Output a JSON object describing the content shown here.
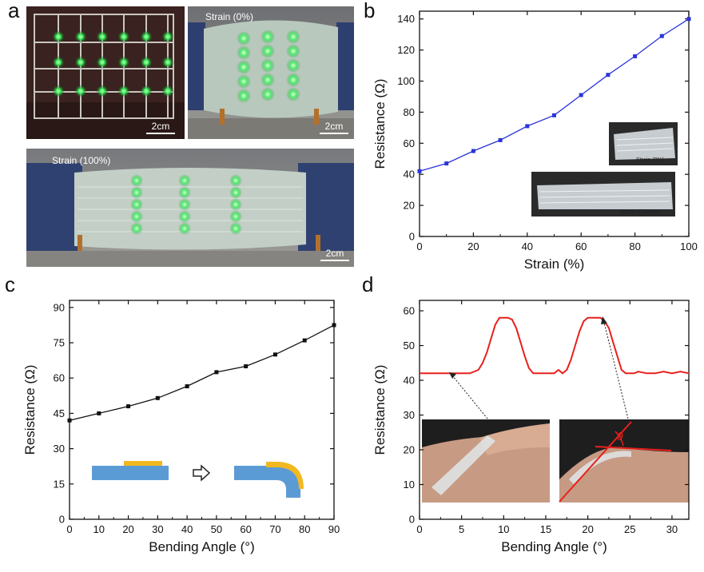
{
  "panels": {
    "a": "a",
    "b": "b",
    "c": "c",
    "d": "d"
  },
  "photos": {
    "p1": {
      "scale": "2cm"
    },
    "p2": {
      "label": "Strain (0%)",
      "scale": "2cm"
    },
    "p3": {
      "label": "Strain (100%)",
      "scale": "2cm"
    }
  },
  "colors": {
    "b_line": "#2a35d8",
    "c_line": "#111111",
    "d_line": "#e8201c",
    "inset_blue": "#5b9bd5",
    "inset_yellow": "#f2b820"
  },
  "chart_data": [
    {
      "panel": "b",
      "type": "line",
      "xlabel": "Strain (%)",
      "ylabel": "Resistance (Ω)",
      "xlim": [
        0,
        100
      ],
      "ylim": [
        0,
        145
      ],
      "xticks": [
        "0",
        "20",
        "40",
        "60",
        "80",
        "100"
      ],
      "yticks": [
        "0",
        "20",
        "40",
        "60",
        "80",
        "100",
        "120",
        "140"
      ],
      "x": [
        0,
        10,
        20,
        30,
        40,
        50,
        60,
        70,
        80,
        90,
        100
      ],
      "values": [
        42,
        47,
        55,
        62,
        71,
        78,
        91,
        104,
        116,
        129,
        140
      ],
      "insets": [
        "Strain (0%)",
        "Strain (100%)"
      ]
    },
    {
      "panel": "c",
      "type": "line",
      "xlabel": "Bending Angle (°)",
      "ylabel": "Resistance (Ω)",
      "xlim": [
        0,
        90
      ],
      "ylim": [
        0,
        93
      ],
      "xticks": [
        "0",
        "10",
        "20",
        "30",
        "40",
        "50",
        "60",
        "70",
        "80",
        "90"
      ],
      "yticks": [
        "0",
        "15",
        "30",
        "45",
        "60",
        "75",
        "90"
      ],
      "x": [
        0,
        10,
        20,
        30,
        40,
        50,
        60,
        70,
        80,
        90
      ],
      "values": [
        42,
        45,
        48,
        51.5,
        56.5,
        62.5,
        65,
        70,
        76,
        82.5
      ]
    },
    {
      "panel": "d",
      "type": "line",
      "xlabel": "Bending Angle (°)",
      "ylabel": "Resistance (Ω)",
      "xlim": [
        0,
        32
      ],
      "ylim": [
        0,
        63
      ],
      "xticks": [
        "0",
        "5",
        "10",
        "15",
        "20",
        "25",
        "30"
      ],
      "yticks": [
        "0",
        "10",
        "20",
        "30",
        "40",
        "50",
        "60"
      ],
      "x": [
        0,
        1,
        2,
        3,
        4,
        5,
        6,
        7,
        7.5,
        8,
        8.5,
        9,
        9.5,
        10,
        10.5,
        11,
        11.5,
        12,
        12.5,
        13,
        13.5,
        14,
        15,
        16,
        16.5,
        17,
        17.5,
        18,
        18.5,
        19,
        19.5,
        20,
        20.5,
        21,
        21.5,
        22,
        22.5,
        23,
        23.5,
        24,
        24.5,
        25,
        25.5,
        26,
        27,
        28,
        29,
        30,
        31,
        32
      ],
      "values": [
        42,
        42,
        42,
        42,
        42,
        42,
        42,
        43,
        45,
        48,
        52,
        56,
        58,
        58,
        58,
        57.5,
        55,
        51,
        47,
        43.5,
        42,
        42,
        42,
        42,
        43,
        42,
        43,
        46,
        50,
        54,
        57,
        58,
        58,
        58,
        58,
        57,
        55,
        51,
        47,
        43,
        42,
        42,
        42,
        42.5,
        42,
        42,
        42.5,
        42,
        42.5,
        42
      ],
      "theta_label": "θ"
    }
  ]
}
